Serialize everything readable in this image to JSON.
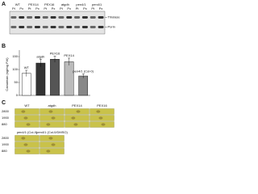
{
  "panel_a": {
    "label": "A",
    "lanes": [
      {
        "genotype": "WT",
        "fractions": [
          "Pt",
          "Px"
        ]
      },
      {
        "genotype": "PEX14",
        "fractions": [
          "Pt",
          "Px"
        ]
      },
      {
        "genotype": "PEX16",
        "fractions": [
          "Pt",
          "Px"
        ]
      },
      {
        "genotype": "atgdh",
        "fractions": [
          "Pt",
          "Px"
        ]
      },
      {
        "genotype": "pen4/1",
        "fractions": [
          "Pt",
          "Px"
        ]
      },
      {
        "genotype": "pen4/1",
        "fractions": [
          "Pt",
          "Px"
        ]
      }
    ],
    "bands": [
      "Thiolase",
      "Porin"
    ]
  },
  "chart_data": {
    "type": "bar",
    "panel_label": "B",
    "y_label": "Camalexin (ng/mg FW)",
    "categories": [
      "WT",
      "atgdh",
      "PEX16",
      "PEX14",
      "pen4/1 (Col-0)"
    ],
    "values": [
      85,
      125,
      140,
      130,
      75
    ],
    "errors": [
      12,
      15,
      12,
      14,
      8
    ],
    "colors": [
      "#ffffff",
      "#333333",
      "#555555",
      "#bbbbbb",
      "#888888"
    ],
    "ylim": [
      0,
      175
    ],
    "yticks": [
      0,
      50,
      100,
      150
    ]
  },
  "panel_c": {
    "label": "C",
    "top": {
      "columns": [
        "WT",
        "atgdh",
        "PEX14",
        "PEX16"
      ],
      "rows": [
        "2800",
        "1900",
        "880"
      ]
    },
    "bottom": {
      "columns": [
        "pen4/1 (Col-0)",
        "pen4/1 (Col-0/DMSO)"
      ],
      "rows": [
        "2800",
        "1900",
        "880"
      ]
    }
  }
}
